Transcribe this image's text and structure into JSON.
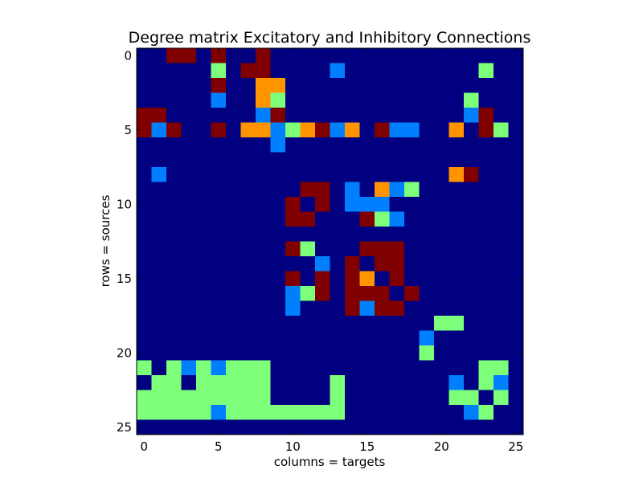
{
  "chart_data": {
    "type": "heatmap",
    "title": "Degree matrix Excitatory and Inhibitory Connections",
    "xlabel": "columns = targets",
    "ylabel": "rows = sources",
    "n_rows": 26,
    "n_cols": 26,
    "x_ticks": [
      0,
      5,
      10,
      15,
      20,
      25
    ],
    "y_ticks": [
      0,
      5,
      10,
      15,
      20,
      25
    ],
    "xlim": [
      -0.5,
      25.5
    ],
    "ylim": [
      25.5,
      -0.5
    ],
    "grid": false,
    "legend": "none",
    "colors": {
      "0": "#000080",
      "1": "#0080ff",
      "2": "#7dff7a",
      "3": "#ff9400",
      "4": "#800000"
    },
    "matrix": [
      [
        0,
        0,
        4,
        4,
        0,
        4,
        0,
        0,
        4,
        0,
        0,
        0,
        0,
        0,
        0,
        0,
        0,
        0,
        0,
        0,
        0,
        0,
        0,
        0,
        0,
        0
      ],
      [
        0,
        0,
        0,
        0,
        0,
        2,
        0,
        4,
        4,
        0,
        0,
        0,
        0,
        1,
        0,
        0,
        0,
        0,
        0,
        0,
        0,
        0,
        0,
        2,
        0,
        0
      ],
      [
        0,
        0,
        0,
        0,
        0,
        4,
        0,
        0,
        3,
        3,
        0,
        0,
        0,
        0,
        0,
        0,
        0,
        0,
        0,
        0,
        0,
        0,
        0,
        0,
        0,
        0
      ],
      [
        0,
        0,
        0,
        0,
        0,
        1,
        0,
        0,
        3,
        2,
        0,
        0,
        0,
        0,
        0,
        0,
        0,
        0,
        0,
        0,
        0,
        0,
        2,
        0,
        0,
        0
      ],
      [
        4,
        4,
        0,
        0,
        0,
        0,
        0,
        0,
        1,
        4,
        0,
        0,
        0,
        0,
        0,
        0,
        0,
        0,
        0,
        0,
        0,
        0,
        1,
        4,
        0,
        0
      ],
      [
        4,
        1,
        4,
        0,
        0,
        4,
        0,
        3,
        3,
        1,
        2,
        3,
        4,
        1,
        3,
        0,
        4,
        1,
        1,
        0,
        0,
        3,
        0,
        4,
        2,
        0
      ],
      [
        0,
        0,
        0,
        0,
        0,
        0,
        0,
        0,
        0,
        1,
        0,
        0,
        0,
        0,
        0,
        0,
        0,
        0,
        0,
        0,
        0,
        0,
        0,
        0,
        0,
        0
      ],
      [
        0,
        0,
        0,
        0,
        0,
        0,
        0,
        0,
        0,
        0,
        0,
        0,
        0,
        0,
        0,
        0,
        0,
        0,
        0,
        0,
        0,
        0,
        0,
        0,
        0,
        0
      ],
      [
        0,
        1,
        0,
        0,
        0,
        0,
        0,
        0,
        0,
        0,
        0,
        0,
        0,
        0,
        0,
        0,
        0,
        0,
        0,
        0,
        0,
        3,
        4,
        0,
        0,
        0
      ],
      [
        0,
        0,
        0,
        0,
        0,
        0,
        0,
        0,
        0,
        0,
        0,
        4,
        4,
        0,
        1,
        0,
        3,
        1,
        2,
        0,
        0,
        0,
        0,
        0,
        0,
        0
      ],
      [
        0,
        0,
        0,
        0,
        0,
        0,
        0,
        0,
        0,
        0,
        4,
        0,
        4,
        0,
        1,
        1,
        1,
        0,
        0,
        0,
        0,
        0,
        0,
        0,
        0,
        0
      ],
      [
        0,
        0,
        0,
        0,
        0,
        0,
        0,
        0,
        0,
        0,
        4,
        4,
        0,
        0,
        0,
        4,
        2,
        1,
        0,
        0,
        0,
        0,
        0,
        0,
        0,
        0
      ],
      [
        0,
        0,
        0,
        0,
        0,
        0,
        0,
        0,
        0,
        0,
        0,
        0,
        0,
        0,
        0,
        0,
        0,
        0,
        0,
        0,
        0,
        0,
        0,
        0,
        0,
        0
      ],
      [
        0,
        0,
        0,
        0,
        0,
        0,
        0,
        0,
        0,
        0,
        4,
        2,
        0,
        0,
        0,
        4,
        4,
        4,
        0,
        0,
        0,
        0,
        0,
        0,
        0,
        0
      ],
      [
        0,
        0,
        0,
        0,
        0,
        0,
        0,
        0,
        0,
        0,
        0,
        0,
        1,
        0,
        4,
        0,
        4,
        4,
        0,
        0,
        0,
        0,
        0,
        0,
        0,
        0
      ],
      [
        0,
        0,
        0,
        0,
        0,
        0,
        0,
        0,
        0,
        0,
        4,
        0,
        4,
        0,
        4,
        3,
        0,
        4,
        0,
        0,
        0,
        0,
        0,
        0,
        0,
        0
      ],
      [
        0,
        0,
        0,
        0,
        0,
        0,
        0,
        0,
        0,
        0,
        1,
        2,
        4,
        0,
        4,
        4,
        4,
        0,
        4,
        0,
        0,
        0,
        0,
        0,
        0,
        0
      ],
      [
        0,
        0,
        0,
        0,
        0,
        0,
        0,
        0,
        0,
        0,
        1,
        0,
        0,
        0,
        4,
        1,
        4,
        4,
        0,
        0,
        0,
        0,
        0,
        0,
        0,
        0
      ],
      [
        0,
        0,
        0,
        0,
        0,
        0,
        0,
        0,
        0,
        0,
        0,
        0,
        0,
        0,
        0,
        0,
        0,
        0,
        0,
        0,
        2,
        2,
        0,
        0,
        0,
        0
      ],
      [
        0,
        0,
        0,
        0,
        0,
        0,
        0,
        0,
        0,
        0,
        0,
        0,
        0,
        0,
        0,
        0,
        0,
        0,
        0,
        1,
        0,
        0,
        0,
        0,
        0,
        0
      ],
      [
        0,
        0,
        0,
        0,
        0,
        0,
        0,
        0,
        0,
        0,
        0,
        0,
        0,
        0,
        0,
        0,
        0,
        0,
        0,
        2,
        0,
        0,
        0,
        0,
        0,
        0
      ],
      [
        2,
        0,
        2,
        1,
        2,
        1,
        2,
        2,
        2,
        0,
        0,
        0,
        0,
        0,
        0,
        0,
        0,
        0,
        0,
        0,
        0,
        0,
        0,
        2,
        2,
        0
      ],
      [
        0,
        2,
        2,
        0,
        2,
        2,
        2,
        2,
        2,
        0,
        0,
        0,
        0,
        2,
        0,
        0,
        0,
        0,
        0,
        0,
        0,
        1,
        0,
        2,
        1,
        0
      ],
      [
        2,
        2,
        2,
        2,
        2,
        2,
        2,
        2,
        2,
        0,
        0,
        0,
        0,
        2,
        0,
        0,
        0,
        0,
        0,
        0,
        0,
        2,
        2,
        0,
        2,
        0
      ],
      [
        2,
        2,
        2,
        2,
        2,
        1,
        2,
        2,
        2,
        2,
        2,
        2,
        2,
        2,
        0,
        0,
        0,
        0,
        0,
        0,
        0,
        0,
        1,
        2,
        0,
        0
      ],
      [
        0,
        0,
        0,
        0,
        0,
        0,
        0,
        0,
        0,
        0,
        0,
        0,
        0,
        0,
        0,
        0,
        0,
        0,
        0,
        0,
        0,
        0,
        0,
        0,
        0,
        0
      ]
    ]
  }
}
